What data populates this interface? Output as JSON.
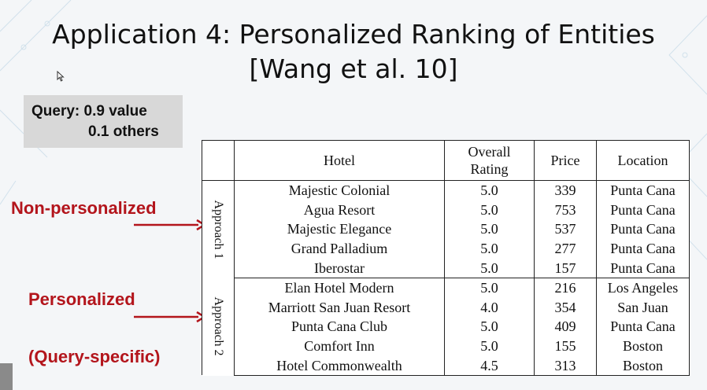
{
  "slide": {
    "title_line1": "Application 4: Personalized Ranking of Entities",
    "title_line2": "[Wang et al. 10]"
  },
  "query": {
    "line1": "Query: 0.9 value",
    "line2": "0.1 others"
  },
  "labels": {
    "non_personalized": "Non-personalized",
    "personalized": "Personalized",
    "query_specific": "(Query-specific)"
  },
  "colors": {
    "label_red": "#b3151c",
    "query_box": "#d8d8d8"
  },
  "table": {
    "headers": {
      "hotel": "Hotel",
      "rating_l1": "Overall",
      "rating_l2": "Rating",
      "price": "Price",
      "location": "Location"
    },
    "approach1_label": "Approach 1",
    "approach2_label": "Approach 2",
    "approach1": [
      {
        "hotel": "Majestic Colonial",
        "rating": "5.0",
        "price": "339",
        "location": "Punta Cana"
      },
      {
        "hotel": "Agua Resort",
        "rating": "5.0",
        "price": "753",
        "location": "Punta Cana"
      },
      {
        "hotel": "Majestic Elegance",
        "rating": "5.0",
        "price": "537",
        "location": "Punta Cana"
      },
      {
        "hotel": "Grand Palladium",
        "rating": "5.0",
        "price": "277",
        "location": "Punta Cana"
      },
      {
        "hotel": "Iberostar",
        "rating": "5.0",
        "price": "157",
        "location": "Punta Cana"
      }
    ],
    "approach2": [
      {
        "hotel": "Elan Hotel Modern",
        "rating": "5.0",
        "price": "216",
        "location": "Los Angeles"
      },
      {
        "hotel": "Marriott San Juan Resort",
        "rating": "4.0",
        "price": "354",
        "location": "San Juan"
      },
      {
        "hotel": "Punta Cana Club",
        "rating": "5.0",
        "price": "409",
        "location": "Punta Cana"
      },
      {
        "hotel": "Comfort Inn",
        "rating": "5.0",
        "price": "155",
        "location": "Boston"
      },
      {
        "hotel": "Hotel Commonwealth",
        "rating": "4.5",
        "price": "313",
        "location": "Boston"
      }
    ]
  }
}
